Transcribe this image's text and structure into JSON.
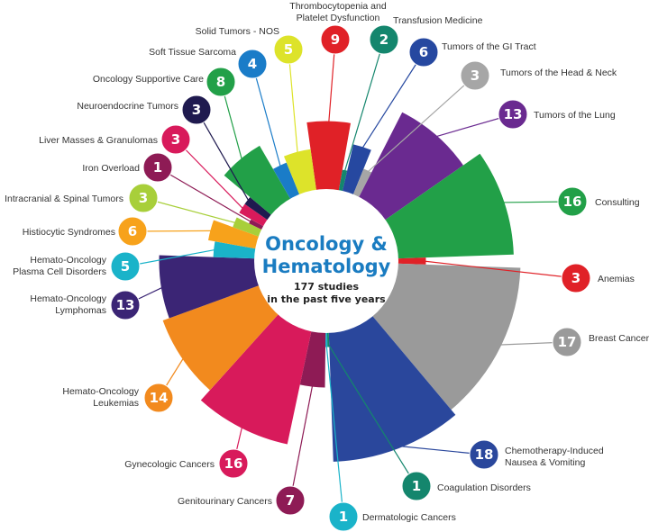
{
  "chart_data": {
    "type": "radial-bar",
    "title": "Oncology & Hematology",
    "title_lines": [
      "Oncology &",
      "Hematology"
    ],
    "subtitle_lines": [
      "177 studies",
      "in the past five years"
    ],
    "total": 177,
    "title_color": "#1a7cc1",
    "categories": [
      {
        "label": [
          "Thrombocytopenia and",
          "Platelet Dysfunction"
        ],
        "value": 9,
        "color": "#e02127"
      },
      {
        "label": [
          "Transfusion Medicine"
        ],
        "value": 2,
        "color": "#14866d"
      },
      {
        "label": [
          "Tumors of the GI Tract"
        ],
        "value": 6,
        "color": "#2648a0"
      },
      {
        "label": [
          "Tumors of the Head & Neck"
        ],
        "value": 3,
        "color": "#a6a6a6"
      },
      {
        "label": [
          "Tumors of the Lung"
        ],
        "value": 13,
        "color": "#6a2a90"
      },
      {
        "label": [
          "Consulting"
        ],
        "value": 16,
        "color": "#22a048"
      },
      {
        "label": [
          "Anemias"
        ],
        "value": 3,
        "color": "#e02127"
      },
      {
        "label": [
          "Breast Cancer"
        ],
        "value": 17,
        "color": "#9a9a9a"
      },
      {
        "label": [
          "Chemotherapy-Induced",
          "Nausea & Vomiting"
        ],
        "value": 18,
        "color": "#2a479c"
      },
      {
        "label": [
          "Coagulation Disorders"
        ],
        "value": 1,
        "color": "#14866d"
      },
      {
        "label": [
          "Dermatologic Cancers"
        ],
        "value": 1,
        "color": "#1ab3c9"
      },
      {
        "label": [
          "Genitourinary Cancers"
        ],
        "value": 7,
        "color": "#8e1b55"
      },
      {
        "label": [
          "Gynecologic Cancers"
        ],
        "value": 16,
        "color": "#d81a5b"
      },
      {
        "label": [
          "Hemato-Oncology",
          "Leukemias"
        ],
        "value": 14,
        "color": "#f28a1e"
      },
      {
        "label": [
          "Hemato-Oncology",
          "Lymphomas"
        ],
        "value": 13,
        "color": "#3b2575"
      },
      {
        "label": [
          "Hemato-Oncology",
          "Plasma Cell Disorders"
        ],
        "value": 5,
        "color": "#1ab3c9"
      },
      {
        "label": [
          "Histiocytic Syndromes"
        ],
        "value": 6,
        "color": "#f7a21b"
      },
      {
        "label": [
          "Intracranial & Spinal Tumors"
        ],
        "value": 3,
        "color": "#a8cf3a"
      },
      {
        "label": [
          "Iron Overload"
        ],
        "value": 1,
        "color": "#8e1b55"
      },
      {
        "label": [
          "Liver Masses & Granulomas"
        ],
        "value": 3,
        "color": "#d81a5b"
      },
      {
        "label": [
          "Neuroendocrine Tumors"
        ],
        "value": 3,
        "color": "#1f1a4f"
      },
      {
        "label": [
          "Oncology Supportive Care"
        ],
        "value": 8,
        "color": "#22a048"
      },
      {
        "label": [
          "Soft Tissue Sarcoma"
        ],
        "value": 4,
        "color": "#1a7cc8"
      },
      {
        "label": [
          "Solid Tumors - NOS"
        ],
        "value": 5,
        "color": "#dde32a"
      }
    ]
  }
}
